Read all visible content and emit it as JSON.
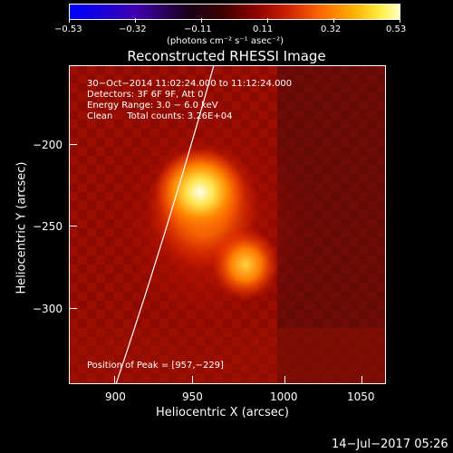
{
  "colorbar": {
    "ticks": [
      "−0.53",
      "−0.32",
      "−0.11",
      "0.11",
      "0.32",
      "0.53"
    ],
    "unit_label": "(photons cm⁻² s⁻¹ asec⁻²)"
  },
  "plot": {
    "title": "Reconstructed RHESSI Image",
    "x_axis_label": "Heliocentric X (arcsec)",
    "y_axis_label": "Heliocentric Y (arcsec)",
    "x_ticks": [
      "900",
      "950",
      "1000",
      "1050"
    ],
    "y_ticks": [
      "−200",
      "−250",
      "−300"
    ],
    "info_lines": [
      "30−Oct−2014 11:02:24.000 to 11:12:24.000",
      "Detectors: 3F 6F 9F, Att 0",
      "Energy Range: 3.0 − 6.0 keV",
      "Clean     Total counts: 3.26E+04"
    ],
    "peak_label": "Position of Peak = [957,−229]"
  },
  "footer": {
    "date_label": "14−Jul−2017 05:26"
  }
}
